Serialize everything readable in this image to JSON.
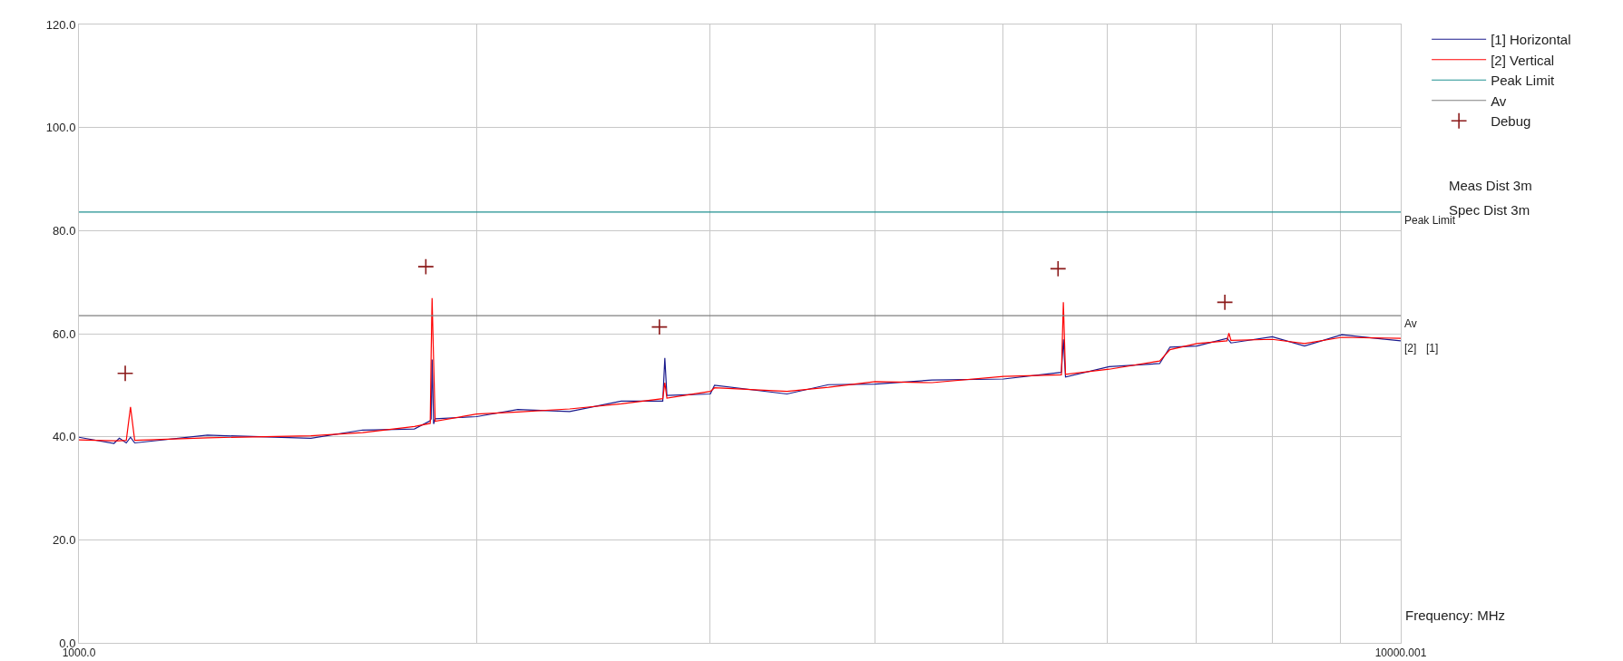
{
  "chart_data": {
    "type": "line",
    "xlabel": "Frequency: MHz",
    "log": "x",
    "grid": true,
    "legend": "top right",
    "xlim": [
      1000,
      10000.001
    ],
    "ylim": [
      0,
      120
    ],
    "xticks": [
      {
        "value": 1000,
        "label": "1000.0"
      },
      {
        "value": 2000,
        "label": null
      },
      {
        "value": 3000,
        "label": null
      },
      {
        "value": 4000,
        "label": null
      },
      {
        "value": 5000,
        "label": null
      },
      {
        "value": 6000,
        "label": null
      },
      {
        "value": 7000,
        "label": null
      },
      {
        "value": 8000,
        "label": null
      },
      {
        "value": 9000,
        "label": null
      },
      {
        "value": 10000.001,
        "label": "10000.001"
      }
    ],
    "yticks": [
      {
        "value": 0,
        "label": "0.0"
      },
      {
        "value": 20,
        "label": "20.0"
      },
      {
        "value": 40,
        "label": "40.0"
      },
      {
        "value": 60,
        "label": "60.0"
      },
      {
        "value": 80,
        "label": "80.0"
      },
      {
        "value": 100,
        "label": "100.0"
      },
      {
        "value": 120,
        "label": "120.0"
      }
    ],
    "series": [
      {
        "name": "[1] Horizontal",
        "color": "#1a1a8c",
        "x": [
          1000,
          1063,
          1073,
          1086,
          1094,
          1102,
          1251,
          1498,
          1639,
          1794,
          1844,
          1847,
          1850,
          1855,
          1860,
          1999,
          2148,
          2351,
          2572,
          2765,
          2775,
          2785,
          3004,
          3026,
          3433,
          3690,
          4002,
          4419,
          5006,
          5537,
          5556,
          5577,
          6017,
          6571,
          6690,
          7011,
          7388,
          7413,
          7440,
          7995,
          8457,
          9025,
          10000
        ],
        "values": [
          39.9,
          38.7,
          39.7,
          38.8,
          39.9,
          38.8,
          40.3,
          39.7,
          41.3,
          41.5,
          43.1,
          43.5,
          55.0,
          42.5,
          43.5,
          43.9,
          45.3,
          44.9,
          46.9,
          46.9,
          55.3,
          48.0,
          48.3,
          50.0,
          48.3,
          50.1,
          50.2,
          51.0,
          51.2,
          52.5,
          58.9,
          51.6,
          53.6,
          54.2,
          57.4,
          57.6,
          59.1,
          58.7,
          58.2,
          59.4,
          57.6,
          59.8,
          58.6
        ]
      },
      {
        "name": "[2] Vertical",
        "color": "#ff0000",
        "x": [
          1000,
          1063,
          1073,
          1086,
          1094,
          1102,
          1251,
          1498,
          1639,
          1794,
          1844,
          1847,
          1850,
          1855,
          1860,
          1999,
          2148,
          2351,
          2572,
          2765,
          2775,
          2785,
          3004,
          3026,
          3433,
          3690,
          4002,
          4419,
          5006,
          5537,
          5556,
          5577,
          6017,
          6571,
          6690,
          7011,
          7388,
          7413,
          7440,
          7995,
          8457,
          9025,
          10000
        ],
        "values": [
          39.4,
          39.2,
          39.2,
          39.3,
          45.8,
          39.3,
          39.8,
          40.2,
          40.8,
          42.0,
          42.6,
          56.0,
          66.9,
          54.5,
          43.0,
          44.4,
          44.8,
          45.4,
          46.4,
          47.4,
          50.5,
          47.5,
          48.8,
          49.5,
          48.8,
          49.6,
          50.7,
          50.5,
          51.7,
          52.0,
          66.1,
          52.1,
          53.1,
          54.7,
          56.9,
          58.1,
          58.6,
          60.1,
          58.7,
          58.9,
          58.1,
          59.3,
          59.1
        ]
      },
      {
        "name": "Peak Limit",
        "color": "#1f9090",
        "x": [
          1000,
          10000.001
        ],
        "values": [
          83.6,
          83.6
        ]
      },
      {
        "name": "Av",
        "color": "#808080",
        "x": [
          1000,
          10000.001
        ],
        "values": [
          63.5,
          63.5
        ]
      },
      {
        "name": "Debug",
        "type": "scatter",
        "marker": "cross",
        "color": "#8b1a1a",
        "x": [
          1084,
          1830,
          2749,
          5505,
          7361
        ],
        "values": [
          52.3,
          73.0,
          61.3,
          72.6,
          66.1
        ]
      }
    ],
    "annotations": [
      "Peak Limit",
      "Av",
      "[2]",
      "[1]",
      "Meas Dist 3m",
      "Spec Dist 3m"
    ]
  }
}
